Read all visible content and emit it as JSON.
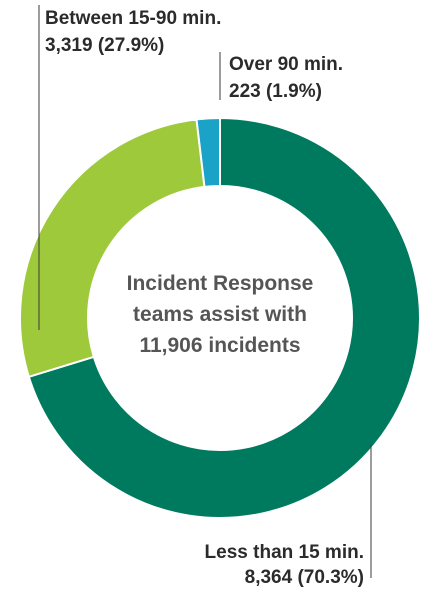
{
  "chart_data": {
    "type": "pie",
    "style": "donut",
    "title": "",
    "center_text": [
      "Incident Response",
      "teams assist with",
      "11,906 incidents"
    ],
    "slices": [
      {
        "label": "Less than 15 min.",
        "value": 8364,
        "value_text": "8,364 (70.3%)",
        "percent": 70.3,
        "color": "#007a5e"
      },
      {
        "label": "Between 15-90 min.",
        "value": 3319,
        "value_text": "3,319 (27.9%)",
        "percent": 27.9,
        "color": "#9dc93b"
      },
      {
        "label": "Over 90 min.",
        "value": 223,
        "value_text": "223 (1.9%)",
        "percent": 1.9,
        "color": "#1aa3c7"
      }
    ]
  }
}
